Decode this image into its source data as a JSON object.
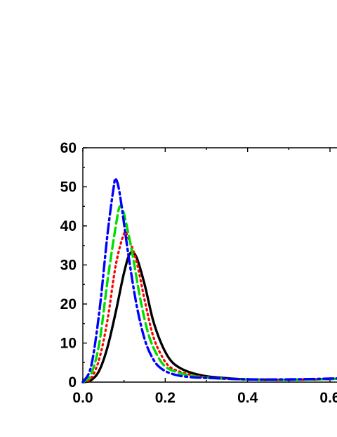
{
  "chart_data": {
    "type": "line",
    "title": "",
    "xlabel": "",
    "ylabel": "",
    "xlim": [
      0,
      0.64
    ],
    "ylim": [
      0,
      60
    ],
    "x_ticks": [
      "0.0",
      "0.2",
      "0.4",
      "0.6"
    ],
    "y_ticks": [
      "0",
      "10",
      "20",
      "30",
      "40",
      "50",
      "60"
    ],
    "grid": false,
    "legend": "none",
    "series": [
      {
        "color": "#000000",
        "style": "solid",
        "points": [
          [
            0.0,
            0
          ],
          [
            0.02,
            0.5
          ],
          [
            0.04,
            3
          ],
          [
            0.06,
            9
          ],
          [
            0.08,
            18
          ],
          [
            0.1,
            28
          ],
          [
            0.115,
            33
          ],
          [
            0.13,
            32
          ],
          [
            0.15,
            25
          ],
          [
            0.17,
            16
          ],
          [
            0.19,
            10
          ],
          [
            0.21,
            6
          ],
          [
            0.23,
            4
          ],
          [
            0.26,
            2.5
          ],
          [
            0.3,
            1.5
          ],
          [
            0.35,
            1.0
          ],
          [
            0.4,
            0.7
          ],
          [
            0.5,
            0.6
          ],
          [
            0.6,
            0.8
          ],
          [
            0.64,
            1.0
          ]
        ]
      },
      {
        "color": "#ff0000",
        "style": "dotted",
        "points": [
          [
            0.0,
            0
          ],
          [
            0.02,
            1
          ],
          [
            0.04,
            6
          ],
          [
            0.06,
            16
          ],
          [
            0.08,
            30
          ],
          [
            0.1,
            38
          ],
          [
            0.11,
            37
          ],
          [
            0.13,
            31
          ],
          [
            0.15,
            21
          ],
          [
            0.17,
            12
          ],
          [
            0.19,
            7
          ],
          [
            0.21,
            4
          ],
          [
            0.24,
            2.5
          ],
          [
            0.28,
            1.5
          ],
          [
            0.33,
            1.0
          ],
          [
            0.4,
            0.7
          ],
          [
            0.5,
            0.6
          ],
          [
            0.6,
            0.8
          ],
          [
            0.64,
            1.0
          ]
        ]
      },
      {
        "color": "#00dd00",
        "style": "dashed",
        "points": [
          [
            0.0,
            0
          ],
          [
            0.02,
            2
          ],
          [
            0.04,
            10
          ],
          [
            0.06,
            26
          ],
          [
            0.08,
            40
          ],
          [
            0.09,
            45
          ],
          [
            0.1,
            43
          ],
          [
            0.12,
            33
          ],
          [
            0.14,
            21
          ],
          [
            0.16,
            12
          ],
          [
            0.18,
            7
          ],
          [
            0.2,
            4
          ],
          [
            0.23,
            2.5
          ],
          [
            0.27,
            1.5
          ],
          [
            0.32,
            1.0
          ],
          [
            0.4,
            0.7
          ],
          [
            0.5,
            0.6
          ],
          [
            0.6,
            0.8
          ],
          [
            0.64,
            1.0
          ]
        ]
      },
      {
        "color": "#0000ff",
        "style": "dash-dot",
        "points": [
          [
            0.0,
            0
          ],
          [
            0.02,
            4
          ],
          [
            0.04,
            18
          ],
          [
            0.06,
            38
          ],
          [
            0.075,
            50
          ],
          [
            0.08,
            52
          ],
          [
            0.09,
            48
          ],
          [
            0.11,
            33
          ],
          [
            0.13,
            20
          ],
          [
            0.15,
            11
          ],
          [
            0.17,
            6
          ],
          [
            0.19,
            3.5
          ],
          [
            0.22,
            2
          ],
          [
            0.26,
            1.3
          ],
          [
            0.32,
            1.0
          ],
          [
            0.4,
            0.7
          ],
          [
            0.5,
            0.7
          ],
          [
            0.6,
            0.9
          ],
          [
            0.64,
            1.1
          ]
        ]
      }
    ]
  }
}
